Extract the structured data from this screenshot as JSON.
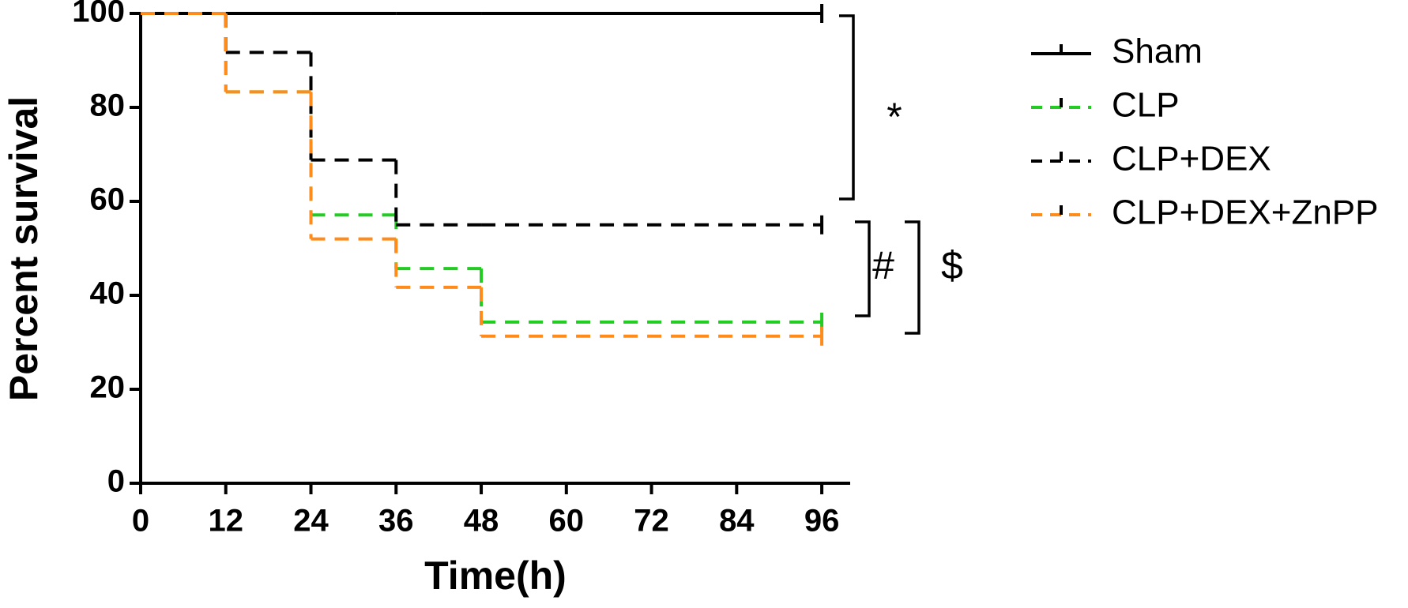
{
  "chart_data": {
    "type": "step",
    "x_label": "Time(h)",
    "y_label": "Percent survival",
    "x": [
      0,
      12,
      24,
      36,
      48,
      96
    ],
    "series": [
      {
        "name": "Sham",
        "color": "#000000",
        "dash": "solid",
        "values": [
          100,
          100,
          100,
          100,
          100,
          100
        ]
      },
      {
        "name": "CLP",
        "color": "#22cc22",
        "dash": "dashed",
        "values": [
          100,
          83.3,
          57.1,
          45.7,
          34.3,
          34.3
        ]
      },
      {
        "name": "CLP+DEX",
        "color": "#000000",
        "dash": "dashed",
        "values": [
          100,
          91.7,
          68.8,
          55,
          55,
          55
        ]
      },
      {
        "name": "CLP+DEX+ZnPP",
        "color": "#ff8c1a",
        "dash": "dashed",
        "values": [
          100,
          83.3,
          52,
          41.7,
          31.3,
          31.3
        ]
      }
    ],
    "xlim": [
      0,
      100
    ],
    "xticks": [
      0,
      12,
      24,
      36,
      48,
      60,
      72,
      84,
      96
    ],
    "ylim": [
      0,
      100
    ],
    "yticks": [
      0,
      20,
      40,
      60,
      80,
      100
    ],
    "annotations": [
      "*",
      "#",
      "$"
    ],
    "legend": "right"
  }
}
